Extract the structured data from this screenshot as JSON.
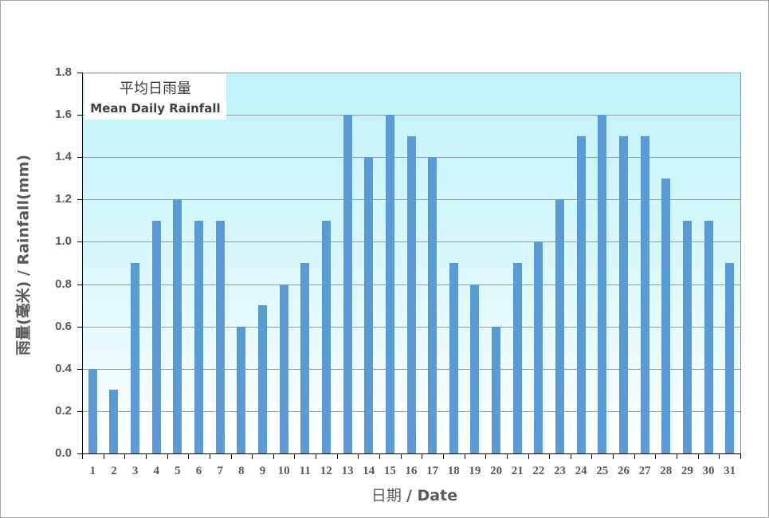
{
  "chart_data": {
    "type": "bar",
    "title": "平均日雨量 Mean Daily Rainfall",
    "legend": {
      "zh": "平均日雨量",
      "en": "Mean Daily Rainfall"
    },
    "xlabel": "日期 / Date",
    "ylabel": "雨量(毫米) / Rainfall(mm)",
    "ylim": [
      0,
      1.8
    ],
    "yticks": [
      "0.0",
      "0.2",
      "0.4",
      "0.6",
      "0.8",
      "1.0",
      "1.2",
      "1.4",
      "1.6",
      "1.8"
    ],
    "grid": true,
    "categories": [
      "1",
      "2",
      "3",
      "4",
      "5",
      "6",
      "7",
      "8",
      "9",
      "10",
      "11",
      "12",
      "13",
      "14",
      "15",
      "16",
      "17",
      "18",
      "19",
      "20",
      "21",
      "22",
      "23",
      "24",
      "25",
      "26",
      "27",
      "28",
      "29",
      "30",
      "31"
    ],
    "values": [
      0.4,
      0.3,
      0.9,
      1.1,
      1.2,
      1.1,
      1.1,
      0.6,
      0.7,
      0.8,
      0.9,
      1.1,
      1.6,
      1.4,
      1.6,
      1.5,
      1.4,
      0.9,
      0.8,
      0.6,
      0.9,
      1.0,
      1.2,
      1.5,
      1.6,
      1.5,
      1.5,
      1.3,
      1.1,
      1.1,
      0.9
    ],
    "bar_color": "#5b9bd5"
  },
  "legend": {
    "zh": "平均日雨量",
    "en": "Mean Daily Rainfall"
  },
  "axes": {
    "y_title": "雨量(毫米) / Rainfall(mm)",
    "x_title_zh": "日期",
    "x_title_en": "/ Date"
  }
}
